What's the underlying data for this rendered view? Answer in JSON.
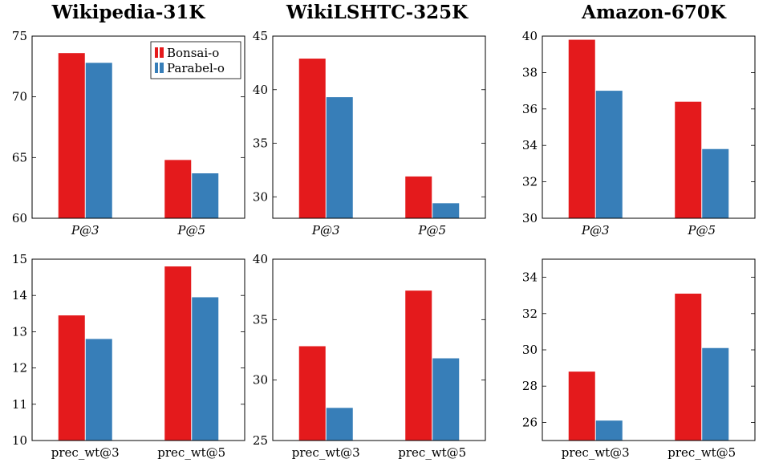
{
  "titles": [
    "Wikipedia-31K",
    "WikiLSHTC-325K",
    "Amazon-670K"
  ],
  "colors": {
    "bonsai": "#e41a1c",
    "parabel": "#377eb8"
  },
  "legend": {
    "items": [
      "Bonsai-o",
      "Parabel-o"
    ]
  },
  "chart_data": [
    {
      "type": "bar",
      "title": "Wikipedia-31K",
      "row": "top",
      "categories": [
        "P@3",
        "P@5"
      ],
      "series": [
        {
          "name": "Bonsai-o",
          "values": [
            73.6,
            64.8
          ]
        },
        {
          "name": "Parabel-o",
          "values": [
            72.8,
            63.7
          ]
        }
      ],
      "ylim": [
        60,
        75
      ],
      "yticks": [
        60,
        65,
        70,
        75
      ],
      "legend": "top-right"
    },
    {
      "type": "bar",
      "title": "WikiLSHTC-325K",
      "row": "top",
      "categories": [
        "P@3",
        "P@5"
      ],
      "series": [
        {
          "name": "Bonsai-o",
          "values": [
            42.9,
            31.9
          ]
        },
        {
          "name": "Parabel-o",
          "values": [
            39.3,
            29.4
          ]
        }
      ],
      "ylim": [
        28,
        45
      ],
      "yticks": [
        30,
        35,
        40,
        45
      ]
    },
    {
      "type": "bar",
      "title": "Amazon-670K",
      "row": "top",
      "categories": [
        "P@3",
        "P@5"
      ],
      "series": [
        {
          "name": "Bonsai-o",
          "values": [
            39.8,
            36.4
          ]
        },
        {
          "name": "Parabel-o",
          "values": [
            37.0,
            33.8
          ]
        }
      ],
      "ylim": [
        30,
        40
      ],
      "yticks": [
        30,
        32,
        34,
        36,
        38,
        40
      ]
    },
    {
      "type": "bar",
      "row": "bottom",
      "categories": [
        "prec_wt@3",
        "prec_wt@5"
      ],
      "series": [
        {
          "name": "Bonsai-o",
          "values": [
            13.45,
            14.8
          ]
        },
        {
          "name": "Parabel-o",
          "values": [
            12.8,
            13.95
          ]
        }
      ],
      "ylim": [
        10,
        15
      ],
      "yticks": [
        10,
        11,
        12,
        13,
        14,
        15
      ]
    },
    {
      "type": "bar",
      "row": "bottom",
      "categories": [
        "prec_wt@3",
        "prec_wt@5"
      ],
      "series": [
        {
          "name": "Bonsai-o",
          "values": [
            32.8,
            37.4
          ]
        },
        {
          "name": "Parabel-o",
          "values": [
            27.7,
            31.8
          ]
        }
      ],
      "ylim": [
        25,
        40
      ],
      "yticks": [
        25,
        30,
        35,
        40
      ]
    },
    {
      "type": "bar",
      "row": "bottom",
      "categories": [
        "prec_wt@3",
        "prec_wt@5"
      ],
      "series": [
        {
          "name": "Bonsai-o",
          "values": [
            28.8,
            33.1
          ]
        },
        {
          "name": "Parabel-o",
          "values": [
            26.1,
            30.1
          ]
        }
      ],
      "ylim": [
        25,
        35
      ],
      "yticks": [
        26,
        28,
        30,
        32,
        34
      ]
    }
  ]
}
